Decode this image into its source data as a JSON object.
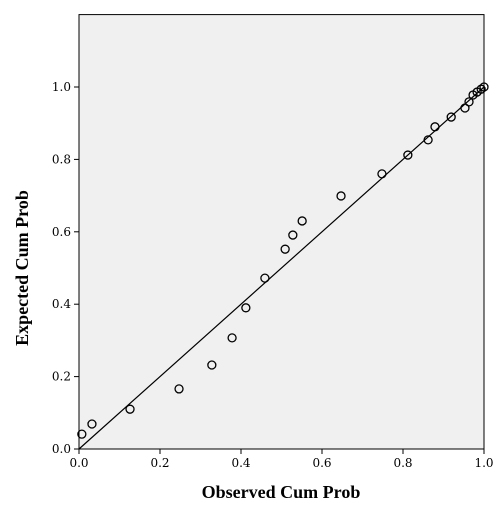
{
  "chart_data": {
    "type": "scatter",
    "xlabel": "Observed Cum Prob",
    "ylabel": "Expected Cum Prob",
    "x": [
      0.007,
      0.032,
      0.126,
      0.247,
      0.328,
      0.378,
      0.412,
      0.459,
      0.509,
      0.528,
      0.551,
      0.647,
      0.748,
      0.812,
      0.862,
      0.879,
      0.919,
      0.953,
      0.963,
      0.973,
      0.983,
      0.993,
      1.0
    ],
    "values": [
      0.041,
      0.069,
      0.11,
      0.166,
      0.232,
      0.307,
      0.39,
      0.472,
      0.552,
      0.591,
      0.63,
      0.699,
      0.76,
      0.812,
      0.854,
      0.89,
      0.917,
      0.942,
      0.959,
      0.978,
      0.986,
      0.994,
      1.0
    ],
    "color": "#000000",
    "xlim": [
      0,
      1
    ],
    "ylim": [
      0,
      1.2
    ],
    "xticks": [
      {
        "value": 0,
        "label": "0.0"
      },
      {
        "value": 0.2,
        "label": "0.2"
      },
      {
        "value": 0.4,
        "label": "0.4"
      },
      {
        "value": 0.6,
        "label": "0.6"
      },
      {
        "value": 0.8,
        "label": "0.8"
      },
      {
        "value": 1,
        "label": "1.0"
      }
    ],
    "yticks": [
      {
        "value": 0,
        "label": "0.0"
      },
      {
        "value": 0.2,
        "label": "0.2"
      },
      {
        "value": 0.4,
        "label": "0.4"
      },
      {
        "value": 0.6,
        "label": "0.6"
      },
      {
        "value": 0.8,
        "label": "0.8"
      },
      {
        "value": 1,
        "label": "1.0"
      }
    ],
    "grid": false,
    "reference_line": true
  }
}
